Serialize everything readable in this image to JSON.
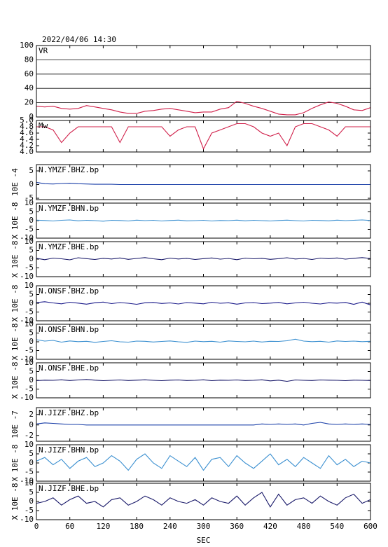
{
  "chart_data": [
    {
      "type": "line",
      "title": "2022/04/06 14:30",
      "label": "VR",
      "color": "#d0204a",
      "grid": true,
      "xlim": [
        0,
        600
      ],
      "xticks": [
        0,
        60,
        120,
        180,
        240,
        300,
        360,
        420,
        480,
        540,
        600
      ],
      "x": [
        0,
        15,
        30,
        45,
        60,
        75,
        90,
        105,
        120,
        135,
        150,
        165,
        180,
        195,
        210,
        225,
        240,
        255,
        270,
        285,
        300,
        315,
        330,
        345,
        360,
        375,
        390,
        405,
        420,
        435,
        450,
        465,
        480,
        495,
        510,
        525,
        540,
        555,
        570,
        585,
        600
      ],
      "values": [
        15,
        14,
        15,
        12,
        11,
        12,
        16,
        14,
        12,
        10,
        7,
        5,
        5,
        8,
        9,
        11,
        12,
        10,
        8,
        6,
        7,
        7,
        11,
        13,
        22,
        19,
        15,
        12,
        8,
        4,
        3,
        3,
        6,
        12,
        17,
        21,
        19,
        15,
        10,
        9,
        13
      ],
      "ylim": [
        0,
        100
      ],
      "yticks": [
        0,
        20,
        40,
        60,
        80,
        100
      ]
    },
    {
      "type": "line",
      "label": "Mw",
      "color": "#d0204a",
      "xlim": [
        0,
        600
      ],
      "xticks": [
        0,
        60,
        120,
        180,
        240,
        300,
        360,
        420,
        480,
        540,
        600
      ],
      "x": [
        0,
        15,
        30,
        45,
        60,
        75,
        90,
        105,
        120,
        135,
        150,
        165,
        180,
        195,
        210,
        225,
        240,
        255,
        270,
        285,
        300,
        315,
        330,
        345,
        360,
        375,
        390,
        405,
        420,
        435,
        450,
        465,
        480,
        495,
        510,
        525,
        540,
        555,
        570,
        585,
        600
      ],
      "values": [
        4.8,
        4.8,
        4.7,
        4.3,
        4.6,
        4.8,
        4.8,
        4.8,
        4.8,
        4.8,
        4.3,
        4.8,
        4.8,
        4.8,
        4.8,
        4.8,
        4.5,
        4.7,
        4.8,
        4.8,
        4.1,
        4.6,
        4.7,
        4.8,
        4.9,
        4.9,
        4.8,
        4.6,
        4.5,
        4.6,
        4.2,
        4.8,
        4.9,
        4.9,
        4.8,
        4.7,
        4.5,
        4.8,
        4.8,
        4.8,
        4.8
      ],
      "ylim": [
        4,
        5
      ],
      "yticks": [
        {
          "value": 4,
          "label": "4.0"
        },
        4.2,
        4.4,
        4.6,
        4.8,
        {
          "value": 5,
          "label": "5.0"
        }
      ]
    },
    {
      "type": "line",
      "label": "N.YMZF.BHZ.bp",
      "unit": "10E -4",
      "color": "#1a3fa8",
      "xlim": [
        0,
        600
      ],
      "xticks": [
        0,
        60,
        120,
        180,
        240,
        300,
        360,
        420,
        480,
        540,
        600
      ],
      "x": [
        0,
        15,
        30,
        45,
        60,
        75,
        90,
        105,
        120,
        135,
        150,
        165,
        180,
        195,
        210,
        225,
        240,
        255,
        270,
        285,
        300,
        315,
        330,
        345,
        360,
        375,
        390,
        405,
        420,
        435,
        450,
        465,
        480,
        495,
        510,
        525,
        540,
        555,
        570,
        585,
        600
      ],
      "values": [
        0.8,
        0.3,
        0.2,
        0.4,
        0.5,
        0.3,
        0.2,
        0.1,
        0.1,
        0.1,
        0,
        0,
        0,
        0,
        0,
        0,
        0,
        0,
        0,
        0,
        0,
        0,
        0,
        0,
        0,
        0,
        0,
        0,
        0,
        0,
        0,
        0,
        0,
        0,
        0,
        0,
        0,
        0,
        0,
        0,
        0
      ],
      "ylim": [
        -5.5,
        7.3
      ],
      "yticks": [
        -5,
        0,
        5
      ]
    },
    {
      "type": "line",
      "label": "N.YMZF.BHN.bp",
      "unit": "X 10E -8",
      "color": "#3a8fd0",
      "xlim": [
        0,
        600
      ],
      "xticks": [
        0,
        60,
        120,
        180,
        240,
        300,
        360,
        420,
        480,
        540,
        600
      ],
      "x": [
        0,
        15,
        30,
        45,
        60,
        75,
        90,
        105,
        120,
        135,
        150,
        165,
        180,
        195,
        210,
        225,
        240,
        255,
        270,
        285,
        300,
        315,
        330,
        345,
        360,
        375,
        390,
        405,
        420,
        435,
        450,
        465,
        480,
        495,
        510,
        525,
        540,
        555,
        570,
        585,
        600
      ],
      "values": [
        0.3,
        0.1,
        -0.2,
        0.2,
        0.4,
        -0.1,
        0.2,
        0,
        -0.3,
        0.2,
        0.1,
        -0.2,
        0.3,
        0,
        0.2,
        -0.2,
        0.1,
        0.3,
        -0.1,
        0,
        0.2,
        -0.2,
        0.1,
        0,
        0.3,
        -0.1,
        0.2,
        0,
        -0.2,
        0.1,
        0.3,
        0,
        -0.2,
        0.2,
        0.1,
        -0.1,
        0.3,
        0,
        0.2,
        0.4,
        0.1
      ],
      "ylim": [
        -10,
        10
      ],
      "yticks": [
        -10,
        -5,
        0,
        5,
        10
      ]
    },
    {
      "type": "line",
      "label": "N.YMZF.BHE.bp",
      "unit": "X 10E -8",
      "color": "#1a1a6a",
      "xlim": [
        0,
        600
      ],
      "xticks": [
        0,
        60,
        120,
        180,
        240,
        300,
        360,
        420,
        480,
        540,
        600
      ],
      "x": [
        0,
        15,
        30,
        45,
        60,
        75,
        90,
        105,
        120,
        135,
        150,
        165,
        180,
        195,
        210,
        225,
        240,
        255,
        270,
        285,
        300,
        315,
        330,
        345,
        360,
        375,
        390,
        405,
        420,
        435,
        450,
        465,
        480,
        495,
        510,
        525,
        540,
        555,
        570,
        585,
        600
      ],
      "values": [
        0.5,
        -0.3,
        0.6,
        0.2,
        -0.4,
        0.8,
        0.3,
        -0.2,
        0.5,
        0.1,
        0.7,
        -0.1,
        0.4,
        0.9,
        0.2,
        -0.3,
        0.6,
        0.1,
        0.5,
        -0.2,
        0.3,
        0.7,
        0,
        0.4,
        -0.3,
        0.6,
        0.2,
        0.5,
        -0.1,
        0.3,
        0.8,
        0.1,
        0.4,
        -0.2,
        0.6,
        0.3,
        0.7,
        0,
        0.5,
        0.9,
        0.4
      ],
      "ylim": [
        -10,
        10
      ],
      "yticks": [
        -10,
        -5,
        0,
        5,
        10
      ]
    },
    {
      "type": "line",
      "label": "N.ONSF.BHZ.bp",
      "unit": "X 10E -8",
      "color": "#1a1a8a",
      "xlim": [
        0,
        600
      ],
      "xticks": [
        0,
        60,
        120,
        180,
        240,
        300,
        360,
        420,
        480,
        540,
        600
      ],
      "x": [
        0,
        15,
        30,
        45,
        60,
        75,
        90,
        105,
        120,
        135,
        150,
        165,
        180,
        195,
        210,
        225,
        240,
        255,
        270,
        285,
        300,
        315,
        330,
        345,
        360,
        375,
        390,
        405,
        420,
        435,
        450,
        465,
        480,
        495,
        510,
        525,
        540,
        555,
        570,
        585,
        600
      ],
      "values": [
        0.4,
        0.9,
        0.2,
        -0.3,
        0.6,
        0.1,
        -0.5,
        0.3,
        0.7,
        -0.2,
        0.4,
        0,
        -0.6,
        0.3,
        0.5,
        -0.1,
        0.2,
        -0.4,
        0.4,
        0.1,
        -0.3,
        0.6,
        0,
        0.3,
        -0.5,
        0.2,
        0.4,
        -0.2,
        0.1,
        0.5,
        -0.3,
        0.2,
        0.6,
        0,
        -0.4,
        0.3,
        0.1,
        0.5,
        -0.6,
        0.7,
        -0.9
      ],
      "ylim": [
        -10,
        10
      ],
      "yticks": [
        -10,
        -5,
        0,
        5,
        10
      ]
    },
    {
      "type": "line",
      "label": "N.ONSF.BHN.bp",
      "unit": "X 10E -8",
      "color": "#3a8fd0",
      "xlim": [
        0,
        600
      ],
      "xticks": [
        0,
        60,
        120,
        180,
        240,
        300,
        360,
        420,
        480,
        540,
        600
      ],
      "x": [
        0,
        15,
        30,
        45,
        60,
        75,
        90,
        105,
        120,
        135,
        150,
        165,
        180,
        195,
        210,
        225,
        240,
        255,
        270,
        285,
        300,
        315,
        330,
        345,
        360,
        375,
        390,
        405,
        420,
        435,
        450,
        465,
        480,
        495,
        510,
        525,
        540,
        555,
        570,
        585,
        600
      ],
      "values": [
        1.2,
        0.4,
        0.8,
        -0.2,
        0.5,
        0.1,
        0.3,
        -0.3,
        0.2,
        0.6,
        0,
        -0.2,
        0.4,
        0.3,
        -0.1,
        0.2,
        0.5,
        0,
        -0.3,
        0.4,
        0.1,
        0.3,
        -0.2,
        0.5,
        0.2,
        0,
        0.4,
        -0.1,
        0.3,
        0.2,
        0.6,
        1.5,
        0.4,
        0.1,
        0.3,
        -0.2,
        0.5,
        0.2,
        0.4,
        0.1,
        0.3
      ],
      "ylim": [
        -10,
        10
      ],
      "yticks": [
        -10,
        -5,
        0,
        5,
        10
      ]
    },
    {
      "type": "line",
      "label": "N.ONSF.BHE.bp",
      "unit": "X 10E -8",
      "color": "#1a1a6a",
      "xlim": [
        0,
        600
      ],
      "xticks": [
        0,
        60,
        120,
        180,
        240,
        300,
        360,
        420,
        480,
        540,
        600
      ],
      "x": [
        0,
        15,
        30,
        45,
        60,
        75,
        90,
        105,
        120,
        135,
        150,
        165,
        180,
        195,
        210,
        225,
        240,
        255,
        270,
        285,
        300,
        315,
        330,
        345,
        360,
        375,
        390,
        405,
        420,
        435,
        450,
        465,
        480,
        495,
        510,
        525,
        540,
        555,
        570,
        585,
        600
      ],
      "values": [
        -0.2,
        0.1,
        0,
        0.3,
        -0.1,
        0.2,
        0.5,
        0.1,
        -0.2,
        0,
        0.2,
        -0.1,
        0.1,
        0.3,
        0,
        -0.2,
        0.1,
        0.2,
        -0.1,
        0,
        0.3,
        -0.2,
        0.1,
        0,
        0.2,
        -0.1,
        0,
        0.3,
        -0.3,
        0.1,
        -0.6,
        0.2,
        0,
        -0.1,
        0.2,
        0.1,
        0,
        -0.2,
        0.1,
        0,
        -0.1
      ],
      "ylim": [
        -10,
        10
      ],
      "yticks": [
        -10,
        -5,
        0,
        5,
        10
      ]
    },
    {
      "type": "line",
      "label": "N.JIZF.BHZ.bp",
      "unit": "10E -7",
      "color": "#1a3fa8",
      "xlim": [
        0,
        600
      ],
      "xticks": [
        0,
        60,
        120,
        180,
        240,
        300,
        360,
        420,
        480,
        540,
        600
      ],
      "x": [
        0,
        15,
        30,
        45,
        60,
        75,
        90,
        105,
        120,
        135,
        150,
        165,
        180,
        195,
        210,
        225,
        240,
        255,
        270,
        285,
        300,
        315,
        330,
        345,
        360,
        375,
        390,
        405,
        420,
        435,
        450,
        465,
        480,
        495,
        510,
        525,
        540,
        555,
        570,
        585,
        600
      ],
      "values": [
        0.2,
        0.4,
        0.3,
        0.2,
        0.1,
        0.1,
        0,
        0,
        0,
        0,
        0,
        0,
        0,
        0,
        0,
        0,
        0,
        0,
        0,
        0,
        0,
        0,
        0,
        0,
        0,
        0,
        0,
        0.2,
        0.1,
        0.2,
        0.1,
        0.2,
        0,
        0.3,
        0.5,
        0.2,
        0.1,
        0.2,
        0.1,
        0.2,
        0.1
      ],
      "ylim": [
        -3.1,
        3.3
      ],
      "yticks": [
        -2,
        0,
        2
      ]
    },
    {
      "type": "line",
      "label": "N.JIZF.BHN.bp",
      "unit": "X 10E -8",
      "color": "#3a8fd0",
      "xlim": [
        0,
        600
      ],
      "xticks": [
        0,
        60,
        120,
        180,
        240,
        300,
        360,
        420,
        480,
        540,
        600
      ],
      "x": [
        0,
        15,
        30,
        45,
        60,
        75,
        90,
        105,
        120,
        135,
        150,
        165,
        180,
        195,
        210,
        225,
        240,
        255,
        270,
        285,
        300,
        315,
        330,
        345,
        360,
        375,
        390,
        405,
        420,
        435,
        450,
        465,
        480,
        495,
        510,
        525,
        540,
        555,
        570,
        585,
        600
      ],
      "values": [
        1,
        3,
        -1,
        2,
        -3,
        1,
        3,
        -2,
        0,
        4,
        1,
        -4,
        2,
        5,
        0,
        -3,
        4,
        1,
        -2,
        3,
        -4,
        2,
        3,
        -2,
        4,
        0,
        -3,
        1,
        5,
        -1,
        2,
        -2,
        3,
        0,
        -3,
        4,
        -1,
        2,
        -2,
        1,
        0
      ],
      "ylim": [
        -10,
        10
      ],
      "yticks": [
        -10,
        -5,
        0,
        5,
        10
      ]
    },
    {
      "type": "line",
      "label": "N.JIZF.BHE.bp",
      "unit": "X 10E -8",
      "color": "#1a1a6a",
      "xlabel": "SEC",
      "xlim": [
        0,
        600
      ],
      "xticks": [
        0,
        60,
        120,
        180,
        240,
        300,
        360,
        420,
        480,
        540,
        600
      ],
      "x": [
        0,
        15,
        30,
        45,
        60,
        75,
        90,
        105,
        120,
        135,
        150,
        165,
        180,
        195,
        210,
        225,
        240,
        255,
        270,
        285,
        300,
        315,
        330,
        345,
        360,
        375,
        390,
        405,
        420,
        435,
        450,
        465,
        480,
        495,
        510,
        525,
        540,
        555,
        570,
        585,
        600
      ],
      "values": [
        -1,
        0,
        2,
        -2,
        1,
        3,
        -1,
        0,
        -3,
        1,
        2,
        -2,
        0,
        3,
        1,
        -2,
        2,
        0,
        -1,
        1,
        -2,
        2,
        0,
        -1,
        3,
        -2,
        2,
        5,
        -3,
        4,
        -2,
        1,
        2,
        -1,
        3,
        0,
        -2,
        2,
        4,
        -1,
        1
      ],
      "ylim": [
        -10,
        10
      ],
      "yticks": [
        -10,
        -5,
        0,
        5,
        10
      ]
    }
  ]
}
